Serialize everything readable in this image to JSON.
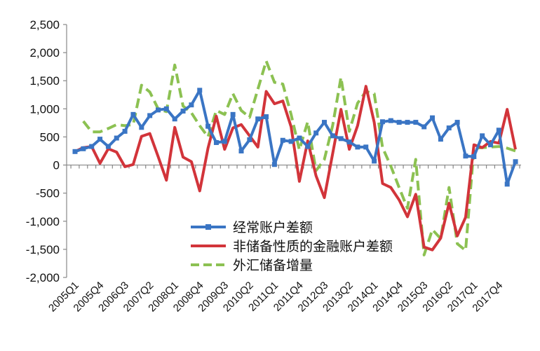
{
  "chart_data": {
    "type": "line",
    "title": "",
    "xlabel": "",
    "ylabel": "",
    "ylim": [
      -2000,
      2500
    ],
    "yticks": [
      -2000,
      -1500,
      -1000,
      -500,
      0,
      500,
      1000,
      1500,
      2000,
      2500
    ],
    "ytick_labels": [
      "-2,000",
      "-1,500",
      "-1,000",
      "-500",
      "0",
      "500",
      "1,000",
      "1,500",
      "2,000",
      "2,500"
    ],
    "grid": false,
    "legend_position": "bottom-center",
    "categories": [
      "2005Q1",
      "2005Q2",
      "2005Q3",
      "2005Q4",
      "2006Q1",
      "2006Q2",
      "2006Q3",
      "2006Q4",
      "2007Q1",
      "2007Q2",
      "2007Q3",
      "2007Q4",
      "2008Q1",
      "2008Q2",
      "2008Q3",
      "2008Q4",
      "2009Q1",
      "2009Q2",
      "2009Q3",
      "2009Q4",
      "2010Q1",
      "2010Q2",
      "2010Q3",
      "2010Q4",
      "2011Q1",
      "2011Q2",
      "2011Q3",
      "2011Q4",
      "2012Q1",
      "2012Q2",
      "2012Q3",
      "2012Q4",
      "2013Q1",
      "2013Q2",
      "2013Q3",
      "2013Q4",
      "2014Q1",
      "2014Q2",
      "2014Q3",
      "2014Q4",
      "2015Q1",
      "2015Q2",
      "2015Q3",
      "2015Q4",
      "2016Q1",
      "2016Q2",
      "2016Q3",
      "2016Q4",
      "2017Q1",
      "2017Q2",
      "2017Q3",
      "2017Q4",
      "2018Q1",
      "2018Q2"
    ],
    "xtick_labels": [
      "2005Q1",
      "2005Q4",
      "2006Q3",
      "2007Q2",
      "2008Q1",
      "2008Q4",
      "2009Q3",
      "2010Q2",
      "2011Q1",
      "2011Q4",
      "2012Q3",
      "2013Q2",
      "2014Q1",
      "2014Q4",
      "2015Q3",
      "2016Q2",
      "2017Q1",
      "2017Q4"
    ],
    "series": [
      {
        "name": "经常账户差额",
        "color": "#3a75c4",
        "style": "solid-square-markers",
        "values": [
          240,
          290,
          330,
          460,
          330,
          480,
          600,
          900,
          670,
          880,
          980,
          1000,
          820,
          960,
          1070,
          1330,
          690,
          400,
          420,
          900,
          250,
          450,
          820,
          860,
          10,
          440,
          420,
          480,
          330,
          570,
          760,
          520,
          470,
          410,
          320,
          320,
          70,
          770,
          790,
          760,
          760,
          760,
          680,
          840,
          460,
          660,
          760,
          160,
          150,
          520,
          360,
          620,
          -340,
          60
        ]
      },
      {
        "name": "非储备性质的金融账户差额",
        "color": "#d2343a",
        "style": "solid",
        "values": [
          240,
          310,
          330,
          30,
          290,
          230,
          -30,
          10,
          510,
          560,
          150,
          -270,
          670,
          140,
          60,
          -460,
          300,
          870,
          280,
          660,
          720,
          520,
          320,
          1310,
          1090,
          1140,
          680,
          -290,
          430,
          -190,
          -580,
          200,
          990,
          280,
          700,
          1400,
          760,
          -330,
          -400,
          -620,
          -920,
          -520,
          -1460,
          -1510,
          -1300,
          -680,
          -1260,
          -930,
          360,
          310,
          420,
          390,
          990,
          280
        ]
      },
      {
        "name": "外汇储备增量",
        "color": "#8cc152",
        "style": "dashed",
        "values": [
          null,
          780,
          590,
          590,
          650,
          720,
          700,
          720,
          1420,
          1300,
          1000,
          950,
          1780,
          1050,
          930,
          700,
          500,
          970,
          900,
          1270,
          970,
          850,
          1350,
          1850,
          1470,
          1440,
          900,
          270,
          770,
          -100,
          100,
          700,
          1560,
          600,
          1100,
          1310,
          1270,
          310,
          -20,
          -400,
          -770,
          100,
          -1600,
          -1150,
          -1310,
          -400,
          -1400,
          -1520,
          300,
          310,
          320,
          330,
          300,
          250
        ]
      }
    ]
  }
}
